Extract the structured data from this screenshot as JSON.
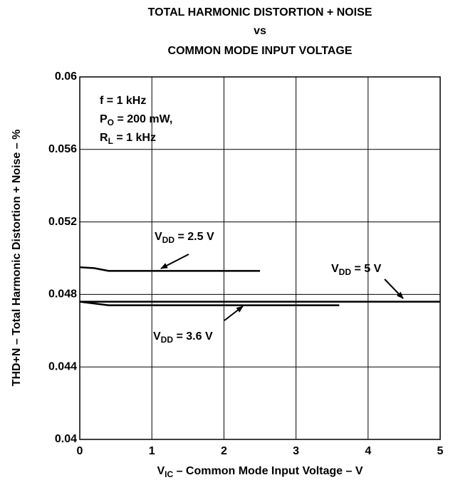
{
  "chart_data": {
    "type": "line",
    "title": [
      "TOTAL HARMONIC DISTORTION + NOISE",
      "vs",
      "COMMON MODE INPUT VOLTAGE"
    ],
    "xlabel": {
      "base": "V",
      "sub": "IC",
      "rest": " – Common Mode Input Voltage – V"
    },
    "ylabel": "THD+N – Total Harmonic Distortion + Noise – %",
    "xlim": [
      0,
      5
    ],
    "xticks": [
      0,
      1,
      2,
      3,
      4,
      5
    ],
    "ylim": [
      0.04,
      0.06
    ],
    "yticks": [
      0.04,
      0.044,
      0.048,
      0.052,
      0.056,
      0.06
    ],
    "grid": true,
    "conditions": [
      {
        "base": "f = 1 kHz"
      },
      {
        "base": "P",
        "sub": "O",
        "rest": " = 200 mW,"
      },
      {
        "base": "R",
        "sub": "L",
        "rest": " = 1 kHz"
      }
    ],
    "series": [
      {
        "label": {
          "base": "V",
          "sub": "DD",
          "rest": " = 2.5 V"
        },
        "color": "#000000",
        "x": [
          0,
          0.2,
          0.4,
          1,
          2,
          2.5
        ],
        "values": [
          0.0495,
          0.04945,
          0.0493,
          0.0493,
          0.0493,
          0.0493
        ]
      },
      {
        "label": {
          "base": "V",
          "sub": "DD",
          "rest": " = 3.6 V"
        },
        "color": "#000000",
        "x": [
          0,
          0.2,
          0.4,
          1,
          2,
          3,
          3.6
        ],
        "values": [
          0.0476,
          0.0475,
          0.0474,
          0.0474,
          0.0474,
          0.0474,
          0.0474
        ]
      },
      {
        "label": {
          "base": "V",
          "sub": "DD",
          "rest": " = 5 V"
        },
        "color": "#000000",
        "x": [
          0,
          1,
          2,
          3,
          4,
          5
        ],
        "values": [
          0.0476,
          0.0476,
          0.0476,
          0.0476,
          0.0476,
          0.0476
        ]
      }
    ]
  }
}
